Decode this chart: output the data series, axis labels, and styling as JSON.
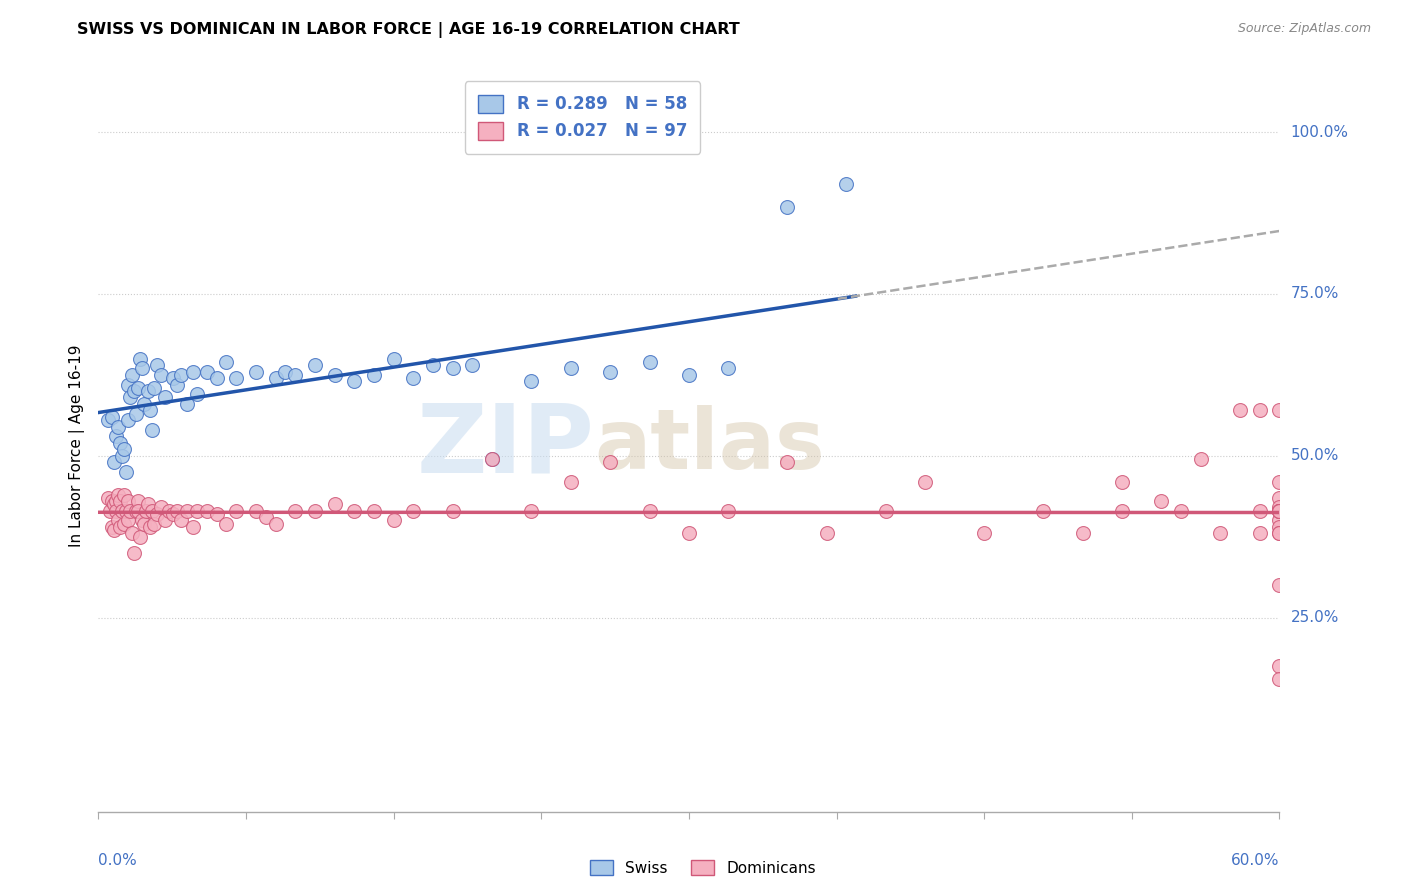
{
  "title": "SWISS VS DOMINICAN IN LABOR FORCE | AGE 16-19 CORRELATION CHART",
  "source": "Source: ZipAtlas.com",
  "ylabel": "In Labor Force | Age 16-19",
  "yticks_labels": [
    "100.0%",
    "75.0%",
    "50.0%",
    "25.0%"
  ],
  "ytick_vals": [
    1.0,
    0.75,
    0.5,
    0.25
  ],
  "xlim": [
    0.0,
    0.6
  ],
  "ylim": [
    -0.05,
    1.08
  ],
  "swiss_R": 0.289,
  "swiss_N": 58,
  "dominican_R": 0.027,
  "dominican_N": 97,
  "swiss_fill": "#A8C8E8",
  "swiss_edge": "#4472C4",
  "dominican_fill": "#F5B0C0",
  "dominican_edge": "#D05878",
  "swiss_line_color": "#2255AA",
  "dominican_line_color": "#D05878",
  "dashed_color": "#AAAAAA",
  "swiss_x": [
    0.005,
    0.007,
    0.008,
    0.009,
    0.01,
    0.011,
    0.012,
    0.013,
    0.014,
    0.015,
    0.015,
    0.016,
    0.017,
    0.018,
    0.019,
    0.02,
    0.021,
    0.022,
    0.023,
    0.025,
    0.026,
    0.027,
    0.028,
    0.03,
    0.032,
    0.034,
    0.038,
    0.04,
    0.042,
    0.045,
    0.048,
    0.05,
    0.055,
    0.06,
    0.065,
    0.07,
    0.08,
    0.09,
    0.095,
    0.1,
    0.11,
    0.12,
    0.13,
    0.14,
    0.15,
    0.16,
    0.17,
    0.18,
    0.19,
    0.2,
    0.22,
    0.24,
    0.26,
    0.28,
    0.3,
    0.32,
    0.35,
    0.38
  ],
  "swiss_y": [
    0.555,
    0.56,
    0.49,
    0.53,
    0.545,
    0.52,
    0.5,
    0.51,
    0.475,
    0.555,
    0.61,
    0.59,
    0.625,
    0.6,
    0.565,
    0.605,
    0.65,
    0.635,
    0.58,
    0.6,
    0.57,
    0.54,
    0.605,
    0.64,
    0.625,
    0.59,
    0.62,
    0.61,
    0.625,
    0.58,
    0.63,
    0.595,
    0.63,
    0.62,
    0.645,
    0.62,
    0.63,
    0.62,
    0.63,
    0.625,
    0.64,
    0.625,
    0.615,
    0.625,
    0.65,
    0.62,
    0.64,
    0.635,
    0.64,
    0.495,
    0.615,
    0.635,
    0.63,
    0.645,
    0.625,
    0.635,
    0.885,
    0.92
  ],
  "dominican_x": [
    0.005,
    0.006,
    0.007,
    0.007,
    0.008,
    0.008,
    0.009,
    0.009,
    0.01,
    0.01,
    0.011,
    0.011,
    0.012,
    0.013,
    0.013,
    0.014,
    0.015,
    0.015,
    0.016,
    0.017,
    0.018,
    0.019,
    0.02,
    0.02,
    0.021,
    0.022,
    0.023,
    0.024,
    0.025,
    0.026,
    0.027,
    0.028,
    0.03,
    0.032,
    0.034,
    0.036,
    0.038,
    0.04,
    0.042,
    0.045,
    0.048,
    0.05,
    0.055,
    0.06,
    0.065,
    0.07,
    0.08,
    0.085,
    0.09,
    0.1,
    0.11,
    0.12,
    0.13,
    0.14,
    0.15,
    0.16,
    0.18,
    0.2,
    0.22,
    0.24,
    0.26,
    0.28,
    0.3,
    0.32,
    0.35,
    0.37,
    0.4,
    0.42,
    0.45,
    0.48,
    0.5,
    0.52,
    0.52,
    0.54,
    0.55,
    0.56,
    0.57,
    0.58,
    0.59,
    0.59,
    0.59,
    0.6,
    0.6,
    0.6,
    0.6,
    0.6,
    0.6,
    0.6,
    0.6,
    0.6,
    0.6,
    0.6,
    0.6,
    0.6,
    0.6,
    0.6,
    0.6
  ],
  "dominican_y": [
    0.435,
    0.415,
    0.43,
    0.39,
    0.425,
    0.385,
    0.43,
    0.415,
    0.44,
    0.4,
    0.43,
    0.39,
    0.415,
    0.44,
    0.395,
    0.415,
    0.43,
    0.4,
    0.415,
    0.38,
    0.35,
    0.415,
    0.43,
    0.415,
    0.375,
    0.4,
    0.395,
    0.415,
    0.425,
    0.39,
    0.415,
    0.395,
    0.41,
    0.42,
    0.4,
    0.415,
    0.41,
    0.415,
    0.4,
    0.415,
    0.39,
    0.415,
    0.415,
    0.41,
    0.395,
    0.415,
    0.415,
    0.405,
    0.395,
    0.415,
    0.415,
    0.425,
    0.415,
    0.415,
    0.4,
    0.415,
    0.415,
    0.495,
    0.415,
    0.46,
    0.49,
    0.415,
    0.38,
    0.415,
    0.49,
    0.38,
    0.415,
    0.46,
    0.38,
    0.415,
    0.38,
    0.415,
    0.46,
    0.43,
    0.415,
    0.495,
    0.38,
    0.57,
    0.57,
    0.38,
    0.415,
    0.57,
    0.435,
    0.42,
    0.415,
    0.4,
    0.39,
    0.415,
    0.38,
    0.415,
    0.46,
    0.38,
    0.415,
    0.3,
    0.175,
    0.155,
    0.415
  ]
}
